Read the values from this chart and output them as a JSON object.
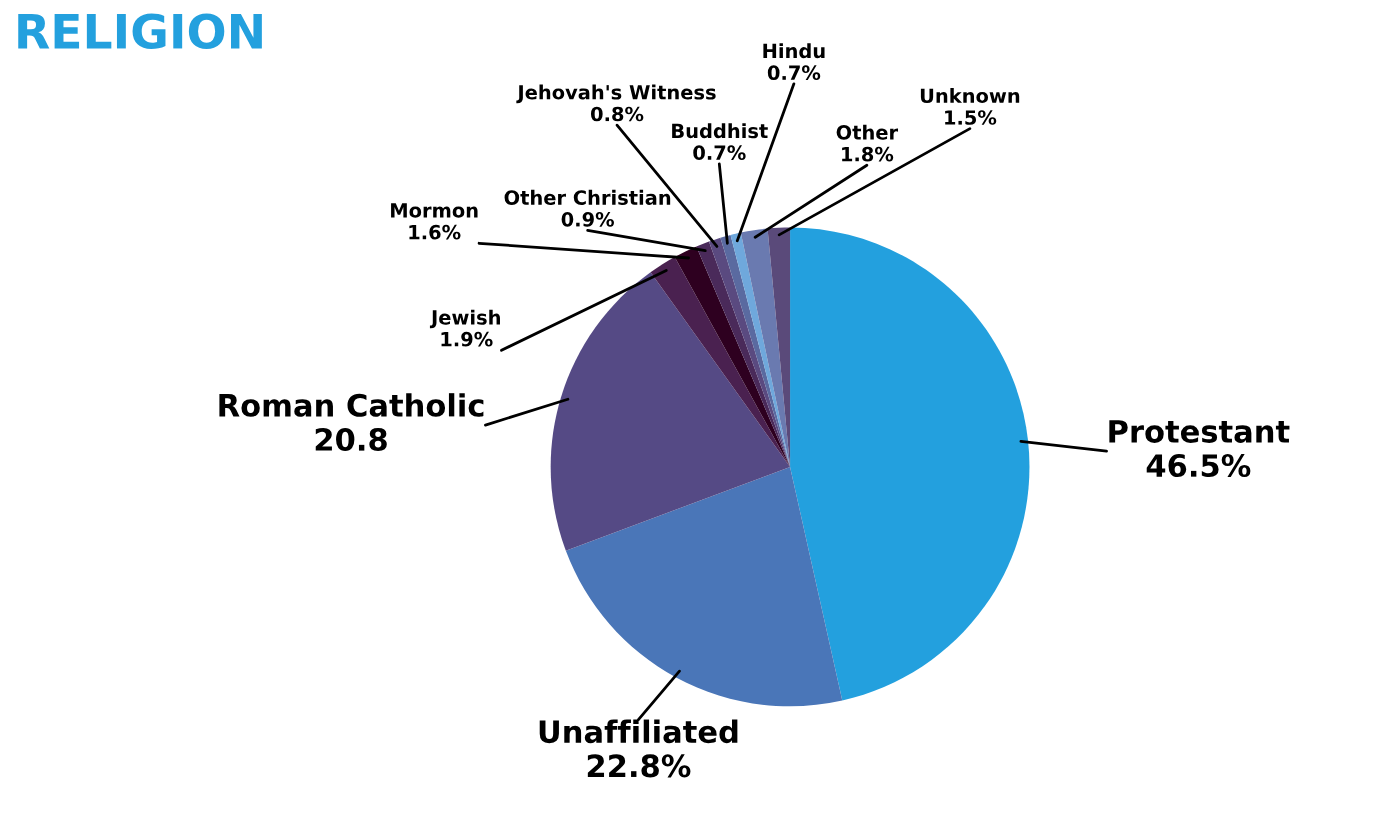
{
  "chart_data": {
    "type": "pie",
    "title": "RELIGION",
    "categories": [
      "Protestant",
      "Unaffiliated",
      "Roman Catholic",
      "Jewish",
      "Mormon",
      "Other Christian",
      "Jehovah's Witness",
      "Buddhist",
      "Hindu",
      "Other",
      "Unknown"
    ],
    "values": [
      46.5,
      22.8,
      20.8,
      1.9,
      1.6,
      0.9,
      0.8,
      0.7,
      0.7,
      1.8,
      1.5
    ],
    "value_labels": [
      "46.5%",
      "22.8%",
      "20.8",
      "1.9%",
      "1.6%",
      "0.9%",
      "0.8%",
      "0.7%",
      "0.7%",
      "1.8%",
      "1.5%"
    ],
    "colors": [
      "#23a0de",
      "#4a76b8",
      "#554a85",
      "#4a2150",
      "#2e0020",
      "#4a2a5a",
      "#5a4a80",
      "#5a6aa0",
      "#6fa8dc",
      "#6a7ab0",
      "#5a4a7a"
    ]
  }
}
